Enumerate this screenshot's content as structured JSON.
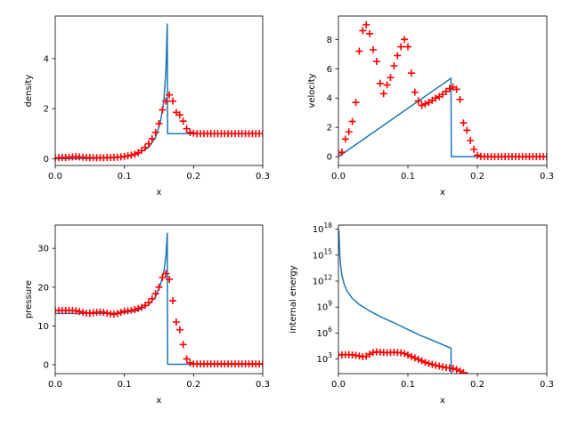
{
  "chart_data": [
    {
      "type": "line",
      "xlabel": "x",
      "ylabel": "density",
      "xlim": [
        0,
        0.3
      ],
      "ylim": [
        -0.27,
        5.7
      ],
      "yscale": "linear",
      "xticks": [
        "0.0",
        "0.1",
        "0.2",
        "0.3"
      ],
      "yticks": [
        {
          "v": 0,
          "label": "0"
        },
        {
          "v": 2,
          "label": "2"
        },
        {
          "v": 4,
          "label": "4"
        }
      ],
      "grid": false,
      "series": [
        {
          "kind": "line",
          "color": "#1f77b4",
          "x": [
            0,
            0.05,
            0.08,
            0.1,
            0.12,
            0.135,
            0.145,
            0.152,
            0.157,
            0.16,
            0.162,
            0.1625,
            0.164,
            0.3
          ],
          "y": [
            0,
            0.01,
            0.03,
            0.07,
            0.2,
            0.45,
            0.85,
            1.45,
            2.3,
            3.5,
            5.4,
            1.0,
            1.0,
            1.0
          ]
        },
        {
          "kind": "markers",
          "marker": "+",
          "color": "#ff0000",
          "x": [
            0,
            0.005,
            0.01,
            0.015,
            0.02,
            0.025,
            0.03,
            0.035,
            0.04,
            0.045,
            0.05,
            0.055,
            0.06,
            0.065,
            0.07,
            0.075,
            0.08,
            0.085,
            0.09,
            0.095,
            0.1,
            0.105,
            0.11,
            0.115,
            0.12,
            0.125,
            0.13,
            0.135,
            0.14,
            0.145,
            0.15,
            0.155,
            0.16,
            0.165,
            0.17,
            0.175,
            0.18,
            0.185,
            0.19,
            0.195,
            0.2,
            0.205,
            0.21,
            0.215,
            0.22,
            0.225,
            0.23,
            0.235,
            0.24,
            0.245,
            0.25,
            0.255,
            0.26,
            0.265,
            0.27,
            0.275,
            0.28,
            0.285,
            0.29,
            0.295,
            0.3
          ],
          "y": [
            0.03,
            0.04,
            0.05,
            0.05,
            0.06,
            0.07,
            0.08,
            0.07,
            0.06,
            0.05,
            0.04,
            0.04,
            0.04,
            0.04,
            0.04,
            0.05,
            0.05,
            0.05,
            0.06,
            0.07,
            0.09,
            0.11,
            0.14,
            0.18,
            0.24,
            0.33,
            0.45,
            0.6,
            0.8,
            1.05,
            1.4,
            1.95,
            2.3,
            2.55,
            2.3,
            1.85,
            1.75,
            1.5,
            1.2,
            1.05,
            1.02,
            1.0,
            1.0,
            1.0,
            1.0,
            1.0,
            1.0,
            1.0,
            1.0,
            1.0,
            1.0,
            1.0,
            1.0,
            1.0,
            1.0,
            1.0,
            1.0,
            1.0,
            1.0,
            1.0,
            1.0
          ]
        }
      ]
    },
    {
      "type": "line",
      "xlabel": "x",
      "ylabel": "velocity",
      "xlim": [
        0,
        0.3
      ],
      "ylim": [
        -0.6,
        9.6
      ],
      "yscale": "linear",
      "xticks": [
        "0.0",
        "0.1",
        "0.2",
        "0.3"
      ],
      "yticks": [
        {
          "v": 0,
          "label": "0"
        },
        {
          "v": 2,
          "label": "2"
        },
        {
          "v": 4,
          "label": "4"
        },
        {
          "v": 6,
          "label": "6"
        },
        {
          "v": 8,
          "label": "8"
        }
      ],
      "grid": false,
      "series": [
        {
          "kind": "line",
          "color": "#1f77b4",
          "x": [
            0,
            0.162,
            0.1625,
            0.3
          ],
          "y": [
            0,
            5.35,
            0,
            0
          ]
        },
        {
          "kind": "markers",
          "marker": "+",
          "color": "#ff0000",
          "x": [
            0,
            0.005,
            0.01,
            0.015,
            0.02,
            0.025,
            0.03,
            0.035,
            0.04,
            0.045,
            0.05,
            0.055,
            0.06,
            0.065,
            0.07,
            0.075,
            0.08,
            0.085,
            0.09,
            0.095,
            0.1,
            0.105,
            0.11,
            0.115,
            0.12,
            0.125,
            0.13,
            0.135,
            0.14,
            0.145,
            0.15,
            0.155,
            0.16,
            0.165,
            0.17,
            0.175,
            0.18,
            0.185,
            0.19,
            0.195,
            0.2,
            0.205,
            0.21,
            0.215,
            0.22,
            0.225,
            0.23,
            0.235,
            0.24,
            0.245,
            0.25,
            0.255,
            0.26,
            0.265,
            0.27,
            0.275,
            0.28,
            0.285,
            0.29,
            0.295,
            0.3
          ],
          "y": [
            0.25,
            0.3,
            1.2,
            1.7,
            2.4,
            3.7,
            7.2,
            8.6,
            9.0,
            8.4,
            7.3,
            6.5,
            5.0,
            4.3,
            4.9,
            5.4,
            6.2,
            6.9,
            7.5,
            8.0,
            7.5,
            5.7,
            4.4,
            3.8,
            3.5,
            3.6,
            3.7,
            3.85,
            4.0,
            4.1,
            4.25,
            4.45,
            4.65,
            4.75,
            4.6,
            3.9,
            2.3,
            1.8,
            1.1,
            0.5,
            0.1,
            0.02,
            0.0,
            0.0,
            0.0,
            0.0,
            0.0,
            0.0,
            0.0,
            0.0,
            0.0,
            0.0,
            0.0,
            0.0,
            0.0,
            0.0,
            0.0,
            0.0,
            0.0,
            0.0,
            0.0
          ]
        }
      ]
    },
    {
      "type": "line",
      "xlabel": "x",
      "ylabel": "pressure",
      "xlim": [
        0,
        0.3
      ],
      "ylim": [
        -2.3,
        36.0
      ],
      "yscale": "linear",
      "xticks": [
        "0.0",
        "0.1",
        "0.2",
        "0.3"
      ],
      "yticks": [
        {
          "v": 0,
          "label": "0"
        },
        {
          "v": 10,
          "label": "10"
        },
        {
          "v": 20,
          "label": "20"
        },
        {
          "v": 30,
          "label": "30"
        }
      ],
      "grid": false,
      "series": [
        {
          "kind": "line",
          "color": "#1f77b4",
          "x": [
            0,
            0.02,
            0.05,
            0.08,
            0.1,
            0.12,
            0.135,
            0.145,
            0.152,
            0.157,
            0.16,
            0.162,
            0.1625,
            0.164,
            0.3
          ],
          "y": [
            13.2,
            13.2,
            13.2,
            13.25,
            13.4,
            14.0,
            15.5,
            17.5,
            20.5,
            24.0,
            28.0,
            34.0,
            0.2,
            0.1,
            0.1
          ]
        },
        {
          "kind": "markers",
          "marker": "+",
          "color": "#ff0000",
          "x": [
            0,
            0.005,
            0.01,
            0.015,
            0.02,
            0.025,
            0.03,
            0.035,
            0.04,
            0.045,
            0.05,
            0.055,
            0.06,
            0.065,
            0.07,
            0.075,
            0.08,
            0.085,
            0.09,
            0.095,
            0.1,
            0.105,
            0.11,
            0.115,
            0.12,
            0.125,
            0.13,
            0.135,
            0.14,
            0.145,
            0.15,
            0.155,
            0.16,
            0.165,
            0.17,
            0.175,
            0.18,
            0.185,
            0.19,
            0.195,
            0.2,
            0.205,
            0.21,
            0.215,
            0.22,
            0.225,
            0.23,
            0.235,
            0.24,
            0.245,
            0.25,
            0.255,
            0.26,
            0.265,
            0.27,
            0.275,
            0.28,
            0.285,
            0.29,
            0.295,
            0.3
          ],
          "y": [
            14.0,
            14.0,
            14.0,
            14.0,
            14.0,
            14.0,
            13.9,
            13.7,
            13.5,
            13.3,
            13.3,
            13.4,
            13.5,
            13.6,
            13.5,
            13.3,
            13.1,
            13.0,
            13.2,
            13.5,
            13.8,
            13.9,
            14.0,
            14.2,
            14.5,
            14.8,
            15.3,
            16.0,
            17.0,
            18.3,
            20.0,
            22.5,
            23.5,
            22.0,
            16.5,
            11.0,
            9.0,
            5.2,
            1.5,
            0.5,
            0.2,
            0.2,
            0.2,
            0.2,
            0.2,
            0.2,
            0.2,
            0.2,
            0.2,
            0.2,
            0.2,
            0.2,
            0.2,
            0.2,
            0.2,
            0.2,
            0.2,
            0.2,
            0.2,
            0.2,
            0.2
          ]
        }
      ]
    },
    {
      "type": "line",
      "xlabel": "x",
      "ylabel": "internal energy",
      "xlim": [
        0,
        0.3
      ],
      "ylim": [
        20,
        3e+18
      ],
      "yscale": "log",
      "xticks": [
        "0.0",
        "0.1",
        "0.2",
        "0.3"
      ],
      "yticks": [
        {
          "v": 1000,
          "label": "10",
          "sup": "3"
        },
        {
          "v": 1000000.0,
          "label": "10",
          "sup": "6"
        },
        {
          "v": 1000000000.0,
          "label": "10",
          "sup": "9"
        },
        {
          "v": 1000000000000.0,
          "label": "10",
          "sup": "12"
        },
        {
          "v": 1000000000000000.0,
          "label": "10",
          "sup": "15"
        },
        {
          "v": 1e+18,
          "label": "10",
          "sup": "18"
        }
      ],
      "grid": false,
      "series": [
        {
          "kind": "line",
          "color": "#1f77b4",
          "x": [
            0.0005,
            0.001,
            0.002,
            0.003,
            0.005,
            0.008,
            0.012,
            0.02,
            0.03,
            0.045,
            0.06,
            0.08,
            0.1,
            0.12,
            0.14,
            0.155,
            0.162,
            0.1625
          ],
          "y": [
            8e+17,
            1e+17,
            1000000000000000.0,
            80000000000000.0,
            5000000000000.0,
            500000000000.0,
            80000000000.0,
            10000000000.0,
            2000000000.0,
            350000000.0,
            80000000.0,
            15000000.0,
            2500000.0,
            450000.0,
            100000.0,
            30000.0,
            18000.0,
            1
          ]
        },
        {
          "kind": "markers",
          "marker": "+",
          "color": "#ff0000",
          "x": [
            0,
            0.005,
            0.01,
            0.015,
            0.02,
            0.025,
            0.03,
            0.035,
            0.04,
            0.045,
            0.05,
            0.055,
            0.06,
            0.065,
            0.07,
            0.075,
            0.08,
            0.085,
            0.09,
            0.095,
            0.1,
            0.105,
            0.11,
            0.115,
            0.12,
            0.125,
            0.13,
            0.135,
            0.14,
            0.145,
            0.15,
            0.155,
            0.16,
            0.165,
            0.17,
            0.175,
            0.18,
            0.185
          ],
          "y": [
            3000,
            3000,
            3100,
            3100,
            2900,
            2600,
            2200,
            1800,
            2000,
            3500,
            5500,
            6500,
            6000,
            5500,
            5300,
            5500,
            5800,
            5500,
            5000,
            4200,
            2900,
            1900,
            1300,
            900,
            600,
            400,
            300,
            230,
            180,
            150,
            120,
            100,
            90,
            80,
            60,
            40,
            25,
            12
          ]
        }
      ]
    }
  ]
}
